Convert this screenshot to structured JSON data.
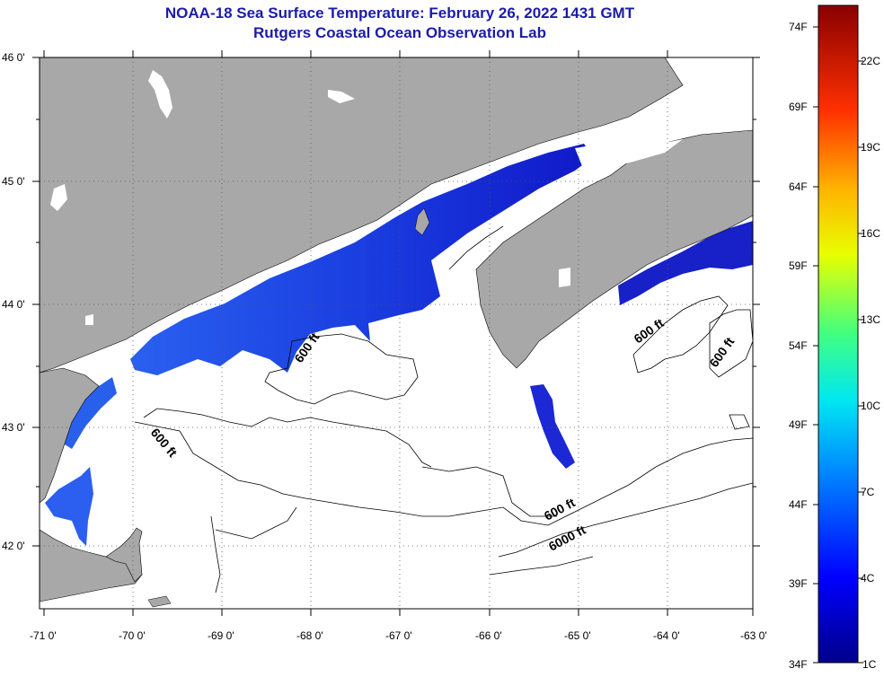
{
  "title": {
    "line1": "NOAA-18 Sea Surface Temperature:  February 26, 2022 1431 GMT",
    "line2": "Rutgers Coastal Ocean Observation Lab"
  },
  "axes": {
    "lat_labels": [
      "46 0'",
      "45 0'",
      "44 0'",
      "43 0'",
      "42 0'"
    ],
    "lon_labels": [
      "-71 0'",
      "-70 0'",
      "-69 0'",
      "-68 0'",
      "-67 0'",
      "-66 0'",
      "-65 0'",
      "-64 0'",
      "-63 0'"
    ]
  },
  "contours": {
    "c1": "600 ft",
    "c2": "600 ft",
    "c3": "600 ft",
    "c4": "600 ft",
    "c5": "600 ft",
    "c6": "6000 ft"
  },
  "colorbar": {
    "fahrenheit": [
      "74F",
      "69F",
      "64F",
      "59F",
      "54F",
      "49F",
      "44F",
      "39F",
      "34F"
    ],
    "celsius": [
      "22C",
      "19C",
      "16C",
      "13C",
      "10C",
      "7C",
      "4C",
      "1C"
    ]
  },
  "colors": {
    "land": "#a8a8a8",
    "title": "#1c1ca8",
    "sst_cold": "#1414c8",
    "sst_mid": "#2c5ef0"
  }
}
